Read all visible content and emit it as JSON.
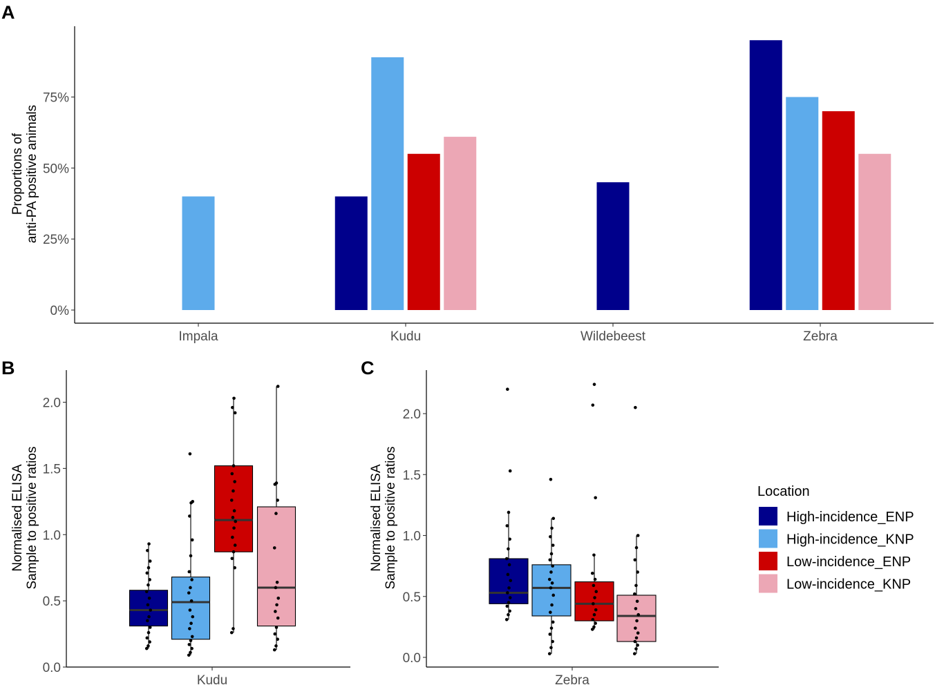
{
  "panels": {
    "a": "A",
    "b": "B",
    "c": "C"
  },
  "colors": {
    "High-incidence_ENP": "#00008b",
    "High-incidence_KNP": "#5dabeb",
    "Low-incidence_ENP": "#cc0000",
    "Low-incidence_KNP": "#eca7b5"
  },
  "legend": {
    "title": "Location",
    "entries": [
      "High-incidence_ENP",
      "High-incidence_KNP",
      "Low-incidence_ENP",
      "Low-incidence_KNP"
    ]
  },
  "chart_data": [
    {
      "id": "A",
      "type": "bar",
      "title": "",
      "xlabel": "",
      "ylabel": [
        "Proportions of",
        "anti-PA positive animals"
      ],
      "categories": [
        "Impala",
        "Kudu",
        "Wildebeest",
        "Zebra"
      ],
      "ylim": [
        0,
        1.0
      ],
      "yticks": [
        0,
        0.25,
        0.5,
        0.75
      ],
      "yticklabels": [
        "0%",
        "25%",
        "50%",
        "75%"
      ],
      "series": [
        {
          "name": "High-incidence_ENP",
          "values": [
            null,
            0.4,
            0.45,
            0.95
          ]
        },
        {
          "name": "High-incidence_KNP",
          "values": [
            0.4,
            0.89,
            null,
            0.75
          ]
        },
        {
          "name": "Low-incidence_ENP",
          "values": [
            null,
            0.55,
            null,
            0.7
          ]
        },
        {
          "name": "Low-incidence_KNP",
          "values": [
            null,
            0.61,
            null,
            0.55
          ]
        }
      ],
      "grid": false
    },
    {
      "id": "B",
      "type": "box",
      "category": "Kudu",
      "ylabel": [
        "Normalised ELISA",
        "Sample to positive ratios"
      ],
      "ylim": [
        0,
        2.23
      ],
      "yticks": [
        0.0,
        0.5,
        1.0,
        1.5,
        2.0
      ],
      "yticklabels": [
        "0.0",
        "0.5",
        "1.0",
        "1.5",
        "2.0"
      ],
      "groups": [
        {
          "name": "High-incidence_ENP",
          "q1": 0.31,
          "median": 0.43,
          "q3": 0.58,
          "whisker_low": 0.14,
          "whisker_high": 0.93,
          "points": [
            0.14,
            0.16,
            0.19,
            0.22,
            0.26,
            0.3,
            0.35,
            0.38,
            0.43,
            0.47,
            0.52,
            0.57,
            0.62,
            0.66,
            0.71,
            0.75,
            0.8,
            0.88,
            0.93
          ]
        },
        {
          "name": "High-incidence_KNP",
          "q1": 0.21,
          "median": 0.49,
          "q3": 0.68,
          "whisker_low": 0.09,
          "whisker_high": 1.25,
          "points": [
            0.09,
            0.11,
            0.14,
            0.17,
            0.2,
            0.23,
            0.29,
            0.33,
            0.38,
            0.43,
            0.5,
            0.56,
            0.6,
            0.66,
            0.72,
            0.84,
            0.96,
            1.14,
            1.24,
            1.25,
            1.61
          ]
        },
        {
          "name": "Low-incidence_ENP",
          "q1": 0.87,
          "median": 1.11,
          "q3": 1.52,
          "whisker_low": 0.26,
          "whisker_high": 2.03,
          "points": [
            0.26,
            0.29,
            0.75,
            0.82,
            0.87,
            0.92,
            0.98,
            1.05,
            1.1,
            1.13,
            1.18,
            1.26,
            1.33,
            1.4,
            1.46,
            1.52,
            1.92,
            1.96,
            2.03
          ]
        },
        {
          "name": "Low-incidence_KNP",
          "q1": 0.31,
          "median": 0.6,
          "q3": 1.21,
          "whisker_low": 0.13,
          "whisker_high": 2.12,
          "points": [
            0.13,
            0.16,
            0.21,
            0.25,
            0.3,
            0.37,
            0.42,
            0.47,
            0.52,
            0.6,
            0.64,
            0.9,
            1.16,
            1.26,
            1.38,
            1.39,
            2.12
          ]
        }
      ]
    },
    {
      "id": "C",
      "type": "box",
      "category": "Zebra",
      "ylabel": [
        "Normalised ELISA",
        "Sample to positive ratios"
      ],
      "ylim": [
        -0.08,
        2.35
      ],
      "yticks": [
        0.0,
        0.5,
        1.0,
        1.5,
        2.0
      ],
      "yticklabels": [
        "0.0",
        "0.5",
        "1.0",
        "1.5",
        "2.0"
      ],
      "groups": [
        {
          "name": "High-incidence_ENP",
          "q1": 0.44,
          "median": 0.53,
          "q3": 0.81,
          "whisker_low": 0.31,
          "whisker_high": 1.19,
          "points": [
            0.31,
            0.35,
            0.38,
            0.42,
            0.45,
            0.49,
            0.53,
            0.57,
            0.63,
            0.68,
            0.76,
            0.81,
            0.89,
            0.97,
            1.08,
            1.19,
            1.53,
            2.2
          ]
        },
        {
          "name": "High-incidence_KNP",
          "q1": 0.34,
          "median": 0.57,
          "q3": 0.76,
          "whisker_low": 0.03,
          "whisker_high": 1.14,
          "points": [
            0.03,
            0.08,
            0.13,
            0.19,
            0.24,
            0.29,
            0.37,
            0.43,
            0.51,
            0.57,
            0.61,
            0.64,
            0.7,
            0.75,
            0.8,
            0.85,
            0.92,
            0.99,
            1.06,
            1.14,
            1.46
          ]
        },
        {
          "name": "Low-incidence_ENP",
          "q1": 0.3,
          "median": 0.44,
          "q3": 0.62,
          "whisker_low": 0.23,
          "whisker_high": 0.84,
          "points": [
            0.23,
            0.25,
            0.28,
            0.31,
            0.35,
            0.39,
            0.44,
            0.49,
            0.54,
            0.59,
            0.64,
            0.69,
            0.84,
            1.31,
            2.07,
            2.24
          ]
        },
        {
          "name": "Low-incidence_KNP",
          "q1": 0.13,
          "median": 0.34,
          "q3": 0.51,
          "whisker_low": 0.03,
          "whisker_high": 1.0,
          "points": [
            0.03,
            0.07,
            0.1,
            0.13,
            0.16,
            0.2,
            0.24,
            0.3,
            0.35,
            0.4,
            0.46,
            0.52,
            0.59,
            0.7,
            0.8,
            0.9,
            1.0,
            2.05
          ]
        }
      ]
    }
  ]
}
